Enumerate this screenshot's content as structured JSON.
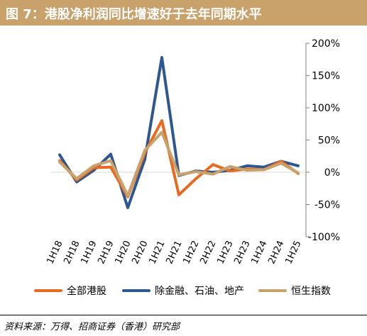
{
  "title": "图 7：港股净利润同比增速好于去年同期水平",
  "source": "资料来源：万得、招商证券（香港）研究部",
  "chart_data": {
    "type": "line",
    "categories": [
      "1H18",
      "2H18",
      "1H19",
      "2H19",
      "1H20",
      "2H20",
      "1H21",
      "2H21",
      "1H22",
      "2H22",
      "1H23",
      "2H23",
      "1H24",
      "2H24",
      "1H25"
    ],
    "y_ticks": [
      "200%",
      "150%",
      "100%",
      "50%",
      "0%",
      "-50%",
      "-100%"
    ],
    "ylim": [
      -100,
      200
    ],
    "y_axis_side": "right",
    "grid": false,
    "legend_position": "bottom",
    "series": [
      {
        "name": "全部港股",
        "color": "#e66b20",
        "values": [
          18,
          -12,
          7,
          8,
          -38,
          30,
          80,
          -35,
          -10,
          12,
          2,
          5,
          4,
          17,
          -2
        ]
      },
      {
        "name": "除金融、石油、地产",
        "color": "#2e5690",
        "values": [
          27,
          -15,
          3,
          28,
          -55,
          20,
          178,
          -5,
          2,
          0,
          3,
          10,
          8,
          17,
          10
        ]
      },
      {
        "name": "恒生指数",
        "color": "#c9a16a",
        "values": [
          16,
          -10,
          10,
          18,
          -36,
          34,
          62,
          -4,
          1,
          -3,
          9,
          3,
          4,
          14,
          -1
        ]
      }
    ]
  }
}
